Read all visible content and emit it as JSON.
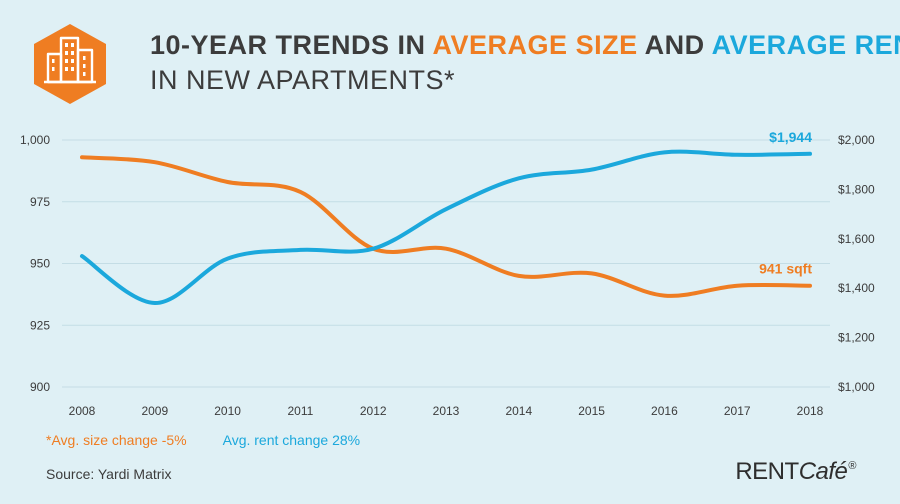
{
  "title": {
    "prefix": "10-YEAR TRENDS IN ",
    "highlight1": "AVERAGE SIZE",
    "middle": " AND ",
    "highlight2": "AVERAGE RENT",
    "line2": "IN NEW APARTMENTS*"
  },
  "notes": {
    "size_change": "*Avg. size change -5%",
    "rent_change": "Avg. rent change 28%"
  },
  "source": "Source: Yardi Matrix",
  "brand": {
    "main": "RENT",
    "italic": "Café",
    "mark": "®"
  },
  "icons": {
    "logo": "apartment-buildings-icon"
  },
  "colors": {
    "size": "#ef7d22",
    "rent": "#1ba8dc",
    "text": "#3c3c3c",
    "background": "#dff0f5"
  },
  "chart_data": {
    "type": "line",
    "title": "",
    "xlabel": "",
    "ylabel": "",
    "grid": true,
    "x": [
      "2008",
      "2009",
      "2010",
      "2011",
      "2012",
      "2013",
      "2014",
      "2015",
      "2016",
      "2017",
      "2018"
    ],
    "y_left": {
      "lim": [
        900,
        1000
      ],
      "ticks": [
        "900",
        "925",
        "950",
        "975",
        "1,000"
      ]
    },
    "y_right": {
      "lim": [
        1000,
        2000
      ],
      "ticks": [
        "$1,000",
        "$1,200",
        "$1,400",
        "$1,600",
        "$1,800",
        "$2,000"
      ]
    },
    "series": [
      {
        "axis": "left",
        "color": "#ef7d22",
        "values": [
          993,
          991,
          983,
          979,
          956,
          956,
          945,
          946,
          937,
          941,
          941
        ],
        "end_label": "941 sqft"
      },
      {
        "axis": "right",
        "color": "#1ba8dc",
        "values": [
          1530,
          1340,
          1520,
          1555,
          1560,
          1720,
          1845,
          1880,
          1950,
          1940,
          1944
        ],
        "end_label": "$1,944"
      }
    ]
  }
}
